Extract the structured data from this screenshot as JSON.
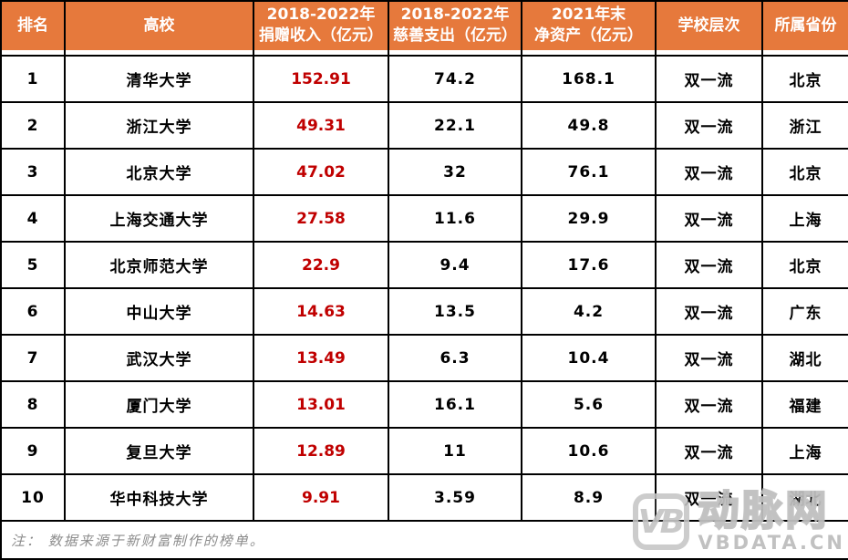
{
  "table": {
    "columns": [
      {
        "id": "rank",
        "line1": "排名",
        "line2": ""
      },
      {
        "id": "university",
        "line1": "高校",
        "line2": ""
      },
      {
        "id": "income",
        "line1": "2018-2022年",
        "line2": "捐赠收入（亿元）"
      },
      {
        "id": "expense",
        "line1": "2018-2022年",
        "line2": "慈善支出（亿元）"
      },
      {
        "id": "assets",
        "line1": "2021年末",
        "line2": "净资产（亿元）"
      },
      {
        "id": "level",
        "line1": "学校层次",
        "line2": ""
      },
      {
        "id": "province",
        "line1": "所属省份",
        "line2": ""
      }
    ],
    "rows": [
      {
        "rank": "1",
        "university": "清华大学",
        "income": "152.91",
        "expense": "74.2",
        "assets": "168.1",
        "level": "双一流",
        "province": "北京"
      },
      {
        "rank": "2",
        "university": "浙江大学",
        "income": "49.31",
        "expense": "22.1",
        "assets": "49.8",
        "level": "双一流",
        "province": "浙江"
      },
      {
        "rank": "3",
        "university": "北京大学",
        "income": "47.02",
        "expense": "32",
        "assets": "76.1",
        "level": "双一流",
        "province": "北京"
      },
      {
        "rank": "4",
        "university": "上海交通大学",
        "income": "27.58",
        "expense": "11.6",
        "assets": "29.9",
        "level": "双一流",
        "province": "上海"
      },
      {
        "rank": "5",
        "university": "北京师范大学",
        "income": "22.9",
        "expense": "9.4",
        "assets": "17.6",
        "level": "双一流",
        "province": "北京"
      },
      {
        "rank": "6",
        "university": "中山大学",
        "income": "14.63",
        "expense": "13.5",
        "assets": "4.2",
        "level": "双一流",
        "province": "广东"
      },
      {
        "rank": "7",
        "university": "武汉大学",
        "income": "13.49",
        "expense": "6.3",
        "assets": "10.4",
        "level": "双一流",
        "province": "湖北"
      },
      {
        "rank": "8",
        "university": "厦门大学",
        "income": "13.01",
        "expense": "16.1",
        "assets": "5.6",
        "level": "双一流",
        "province": "福建"
      },
      {
        "rank": "9",
        "university": "复旦大学",
        "income": "12.89",
        "expense": "11",
        "assets": "10.6",
        "level": "双一流",
        "province": "上海"
      },
      {
        "rank": "10",
        "university": "华中科技大学",
        "income": "9.91",
        "expense": "3.59",
        "assets": "8.9",
        "level": "双一流",
        "province": "湖北"
      }
    ]
  },
  "note": "注： 数据来源于新财富制作的榜单。",
  "watermark": {
    "icon_text": "VB",
    "brand": "动脉网",
    "site": "VBDATA.CN"
  },
  "colors": {
    "header_bg": "#E6793C",
    "header_text": "#FFFFFF",
    "income_red": "#C00000",
    "body_text": "#000000",
    "border": "#000000",
    "note_gray": "#8C8C8C",
    "watermark_gray": "#C3C3C3"
  }
}
